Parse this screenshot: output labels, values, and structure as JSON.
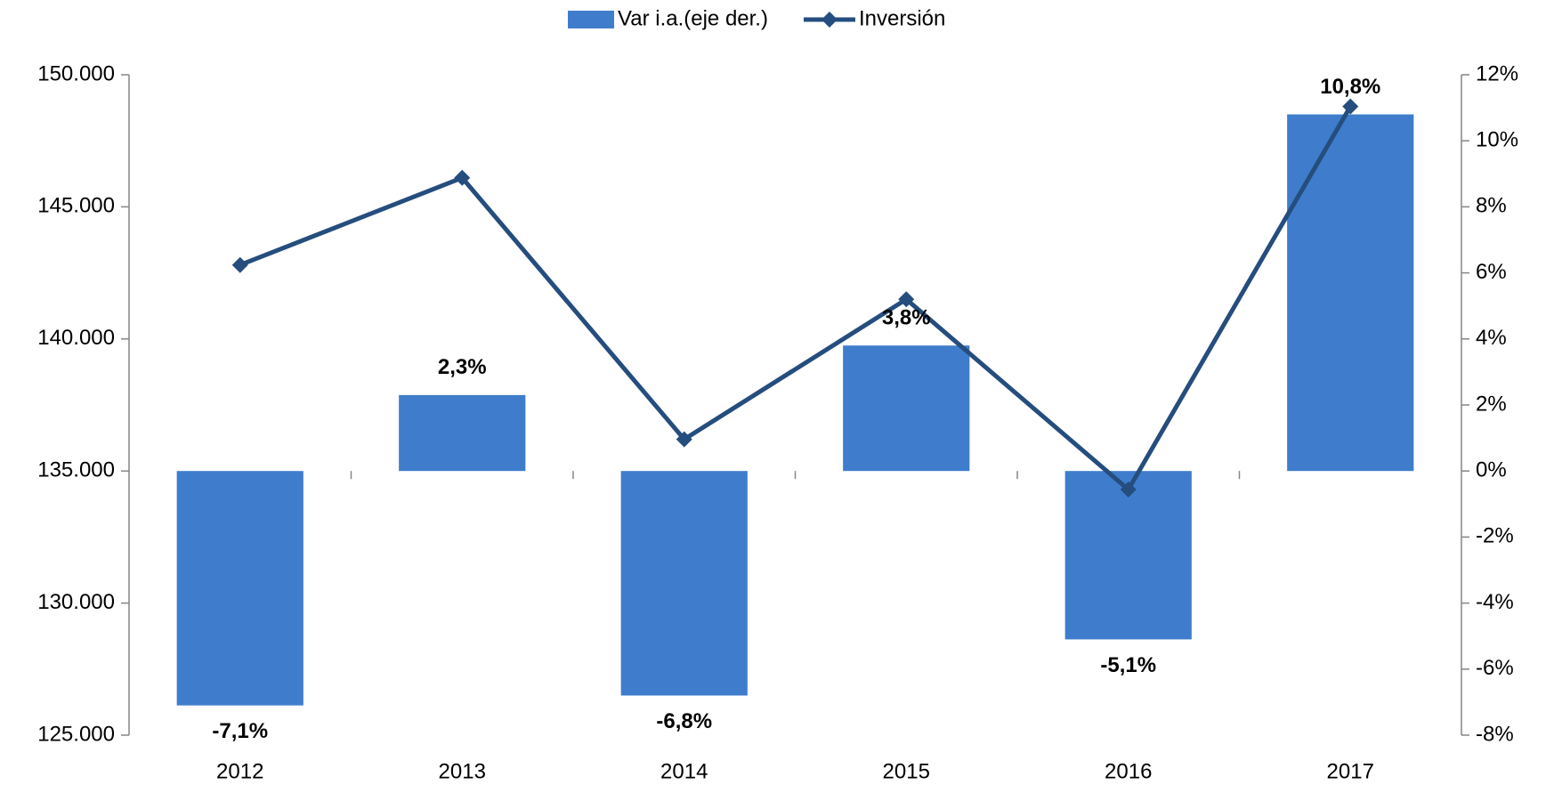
{
  "chart_data": {
    "type": "bar",
    "categories": [
      "2012",
      "2013",
      "2014",
      "2015",
      "2016",
      "2017"
    ],
    "series": [
      {
        "name": "Var i.a.(eje der.)",
        "type": "bar",
        "axis": "y2",
        "color": "#3f7dcc",
        "values": [
          -7.1,
          2.3,
          -6.8,
          3.8,
          -5.1,
          10.8
        ],
        "value_labels": [
          "-7,1%",
          "2,3%",
          "-6,8%",
          "3,8%",
          "-5,1%",
          "10,8%"
        ]
      },
      {
        "name": "Inversión",
        "type": "line",
        "color": "#254d7e",
        "values": [
          142800,
          146100,
          136200,
          141500,
          134300,
          148800
        ]
      }
    ],
    "ylim": [
      125000,
      150000
    ],
    "yticks": [
      {
        "value": 125000,
        "label": "125.000"
      },
      {
        "value": 130000,
        "label": "130.000"
      },
      {
        "value": 135000,
        "label": "135.000"
      },
      {
        "value": 140000,
        "label": "140.000"
      },
      {
        "value": 145000,
        "label": "145.000"
      },
      {
        "value": 150000,
        "label": "150.000"
      }
    ],
    "y2lim": [
      -8,
      12
    ],
    "y2ticks": [
      {
        "value": -8,
        "label": "-8%"
      },
      {
        "value": -6,
        "label": "-6%"
      },
      {
        "value": -4,
        "label": "-4%"
      },
      {
        "value": -2,
        "label": "-2%"
      },
      {
        "value": 0,
        "label": "0%"
      },
      {
        "value": 2,
        "label": "2%"
      },
      {
        "value": 4,
        "label": "4%"
      },
      {
        "value": 6,
        "label": "6%"
      },
      {
        "value": 8,
        "label": "8%"
      },
      {
        "value": 10,
        "label": "10%"
      },
      {
        "value": 12,
        "label": "12%"
      }
    ],
    "legend": "top"
  }
}
